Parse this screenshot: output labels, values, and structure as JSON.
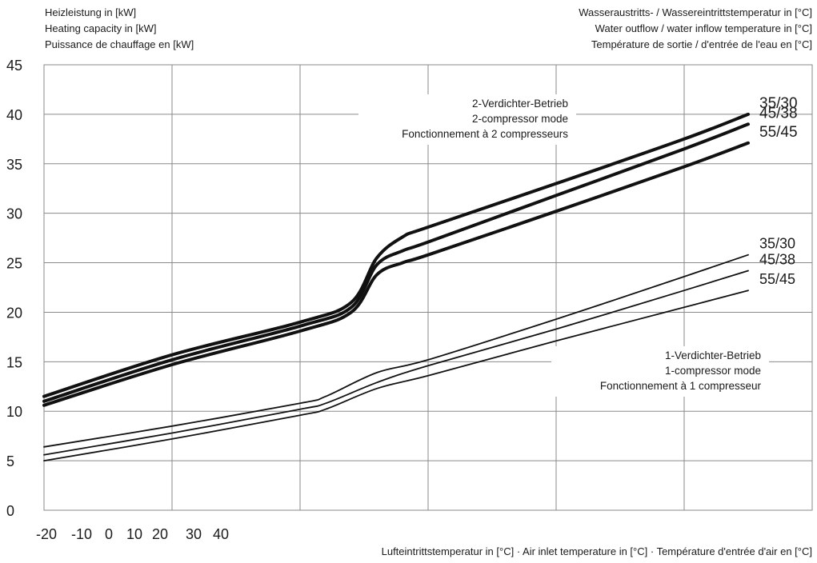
{
  "headers": {
    "y_axis_title_lines": [
      "Heizleistung in [kW]",
      "Heating capacity in [kW]",
      "Puissance de chauffage en [kW]"
    ],
    "water_temp_title_lines": [
      "Wasseraustritts- / Wassereintrittstemperatur in [°C]",
      "Water outflow / water inflow temperature in [°C]",
      "Température de sortie / d'entrée de l'eau en [°C]"
    ]
  },
  "x_axis_title": "Lufteintrittstemperatur in [°C] · Air inlet temperature in [°C] · Température d'entrée d'air en [°C]",
  "colors": {
    "grid": "#8a8a8a",
    "curve": "#111111",
    "text": "#1a1a1a"
  },
  "chart_data": {
    "type": "line",
    "title": "",
    "xlabel": "Lufteintrittstemperatur in [°C] · Air inlet temperature in [°C] · Température d'entrée d'air en [°C]",
    "ylabel": "Heizleistung in [kW] / Heating capacity in [kW] / Puissance de chauffage en [kW]",
    "x_tick_labels": [
      "-20",
      "-10",
      "0",
      "10",
      "20",
      "30",
      "40"
    ],
    "y_ticks": [
      0,
      5,
      10,
      15,
      20,
      25,
      30,
      35,
      40,
      45
    ],
    "ylim": [
      0,
      45
    ],
    "xlim": [
      -20,
      40
    ],
    "grid": true,
    "annotations": [
      {
        "group": "two_compressor",
        "lines": [
          "2-Verdichter-Betrieb",
          "2-compressor mode",
          "Fonctionnement à 2 compresseurs"
        ]
      },
      {
        "group": "one_compressor",
        "lines": [
          "1-Verdichter-Betrieb",
          "1-compressor mode",
          "Fonctionnement à 1 compresseur"
        ]
      }
    ],
    "series": [
      {
        "name": "35/30",
        "group": "two_compressor",
        "x": [
          -20,
          -10,
          0,
          4,
          6,
          8,
          10,
          20,
          30,
          35
        ],
        "y": [
          11.5,
          15.7,
          19.0,
          21.0,
          25.5,
          27.6,
          28.6,
          33.0,
          37.5,
          40.0
        ]
      },
      {
        "name": "45/38",
        "group": "two_compressor",
        "x": [
          -20,
          -10,
          0,
          4,
          6,
          8,
          10,
          20,
          30,
          35
        ],
        "y": [
          11.0,
          15.2,
          18.6,
          20.5,
          24.8,
          26.2,
          27.1,
          31.8,
          36.5,
          39.0
        ]
      },
      {
        "name": "55/45",
        "group": "two_compressor",
        "x": [
          -20,
          -10,
          0,
          4,
          6,
          8,
          10,
          20,
          30,
          35
        ],
        "y": [
          10.6,
          14.7,
          18.1,
          20.0,
          23.8,
          25.0,
          25.8,
          30.2,
          34.7,
          37.1
        ]
      },
      {
        "name": "35/30",
        "group": "one_compressor",
        "x": [
          -20,
          -10,
          0,
          2,
          6,
          10,
          20,
          30,
          35
        ],
        "y": [
          6.4,
          8.5,
          10.8,
          11.5,
          13.9,
          15.2,
          19.3,
          23.6,
          25.8
        ]
      },
      {
        "name": "45/38",
        "group": "one_compressor",
        "x": [
          -20,
          -10,
          0,
          2,
          6,
          10,
          20,
          30,
          35
        ],
        "y": [
          5.6,
          7.8,
          10.2,
          10.8,
          12.9,
          14.6,
          18.3,
          22.2,
          24.2
        ]
      },
      {
        "name": "55/45",
        "group": "one_compressor",
        "x": [
          -20,
          -10,
          0,
          2,
          6,
          10,
          20,
          30,
          35
        ],
        "y": [
          5.0,
          7.2,
          9.6,
          10.2,
          12.3,
          13.6,
          17.1,
          20.5,
          22.2
        ]
      }
    ]
  }
}
